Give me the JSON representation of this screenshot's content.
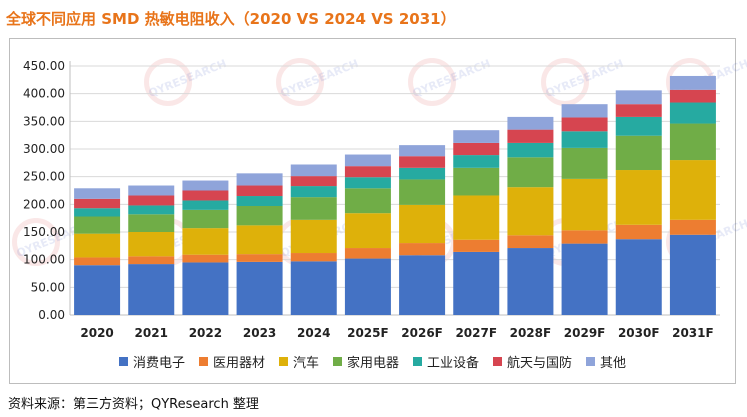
{
  "chart_data": {
    "type": "bar",
    "stacked": true,
    "title": "全球不同应用 SMD 热敏电阻收入（2020 VS 2024 VS 2031）",
    "categories": [
      "2020",
      "2021",
      "2022",
      "2023",
      "2024",
      "2025F",
      "2026F",
      "2027F",
      "2028F",
      "2029F",
      "2030F",
      "2031F"
    ],
    "series": [
      {
        "name": "消费电子",
        "color": "#4472c4",
        "values": [
          90,
          92,
          95,
          96,
          97,
          102,
          108,
          114,
          121,
          129,
          137,
          145
        ]
      },
      {
        "name": "医用器材",
        "color": "#ed7d31",
        "values": [
          14,
          14,
          14,
          14,
          15,
          19,
          22,
          22,
          23,
          24,
          26,
          27
        ]
      },
      {
        "name": "汽车",
        "color": "#deb10a",
        "values": [
          43,
          44,
          48,
          52,
          60,
          63,
          69,
          80,
          87,
          93,
          99,
          108
        ]
      },
      {
        "name": "家用电器",
        "color": "#70ad47",
        "values": [
          31,
          32,
          33,
          35,
          41,
          45,
          46,
          50,
          54,
          56,
          62,
          66
        ]
      },
      {
        "name": "工业设备",
        "color": "#26aaa1",
        "values": [
          15,
          16,
          17,
          18,
          20,
          20,
          21,
          23,
          26,
          30,
          34,
          38
        ]
      },
      {
        "name": "航天与国防",
        "color": "#d64550",
        "values": [
          17,
          18,
          18,
          19,
          18,
          20,
          21,
          22,
          24,
          25,
          23,
          23
        ]
      },
      {
        "name": "其他",
        "color": "#8fa4da",
        "values": [
          19,
          18,
          18,
          22,
          21,
          21,
          20,
          23,
          23,
          24,
          25,
          25
        ]
      }
    ],
    "xlabel": "",
    "ylabel": "",
    "ylim": [
      0,
      450
    ],
    "yticks": [
      "0.00",
      "50.00",
      "100.00",
      "150.00",
      "200.00",
      "250.00",
      "300.00",
      "350.00",
      "400.00",
      "450.00"
    ],
    "grid": true,
    "legend_position": "bottom"
  },
  "watermark": {
    "text": "QYRESEARCH"
  },
  "source": "资料来源：第三方资料；QYResearch 整理"
}
